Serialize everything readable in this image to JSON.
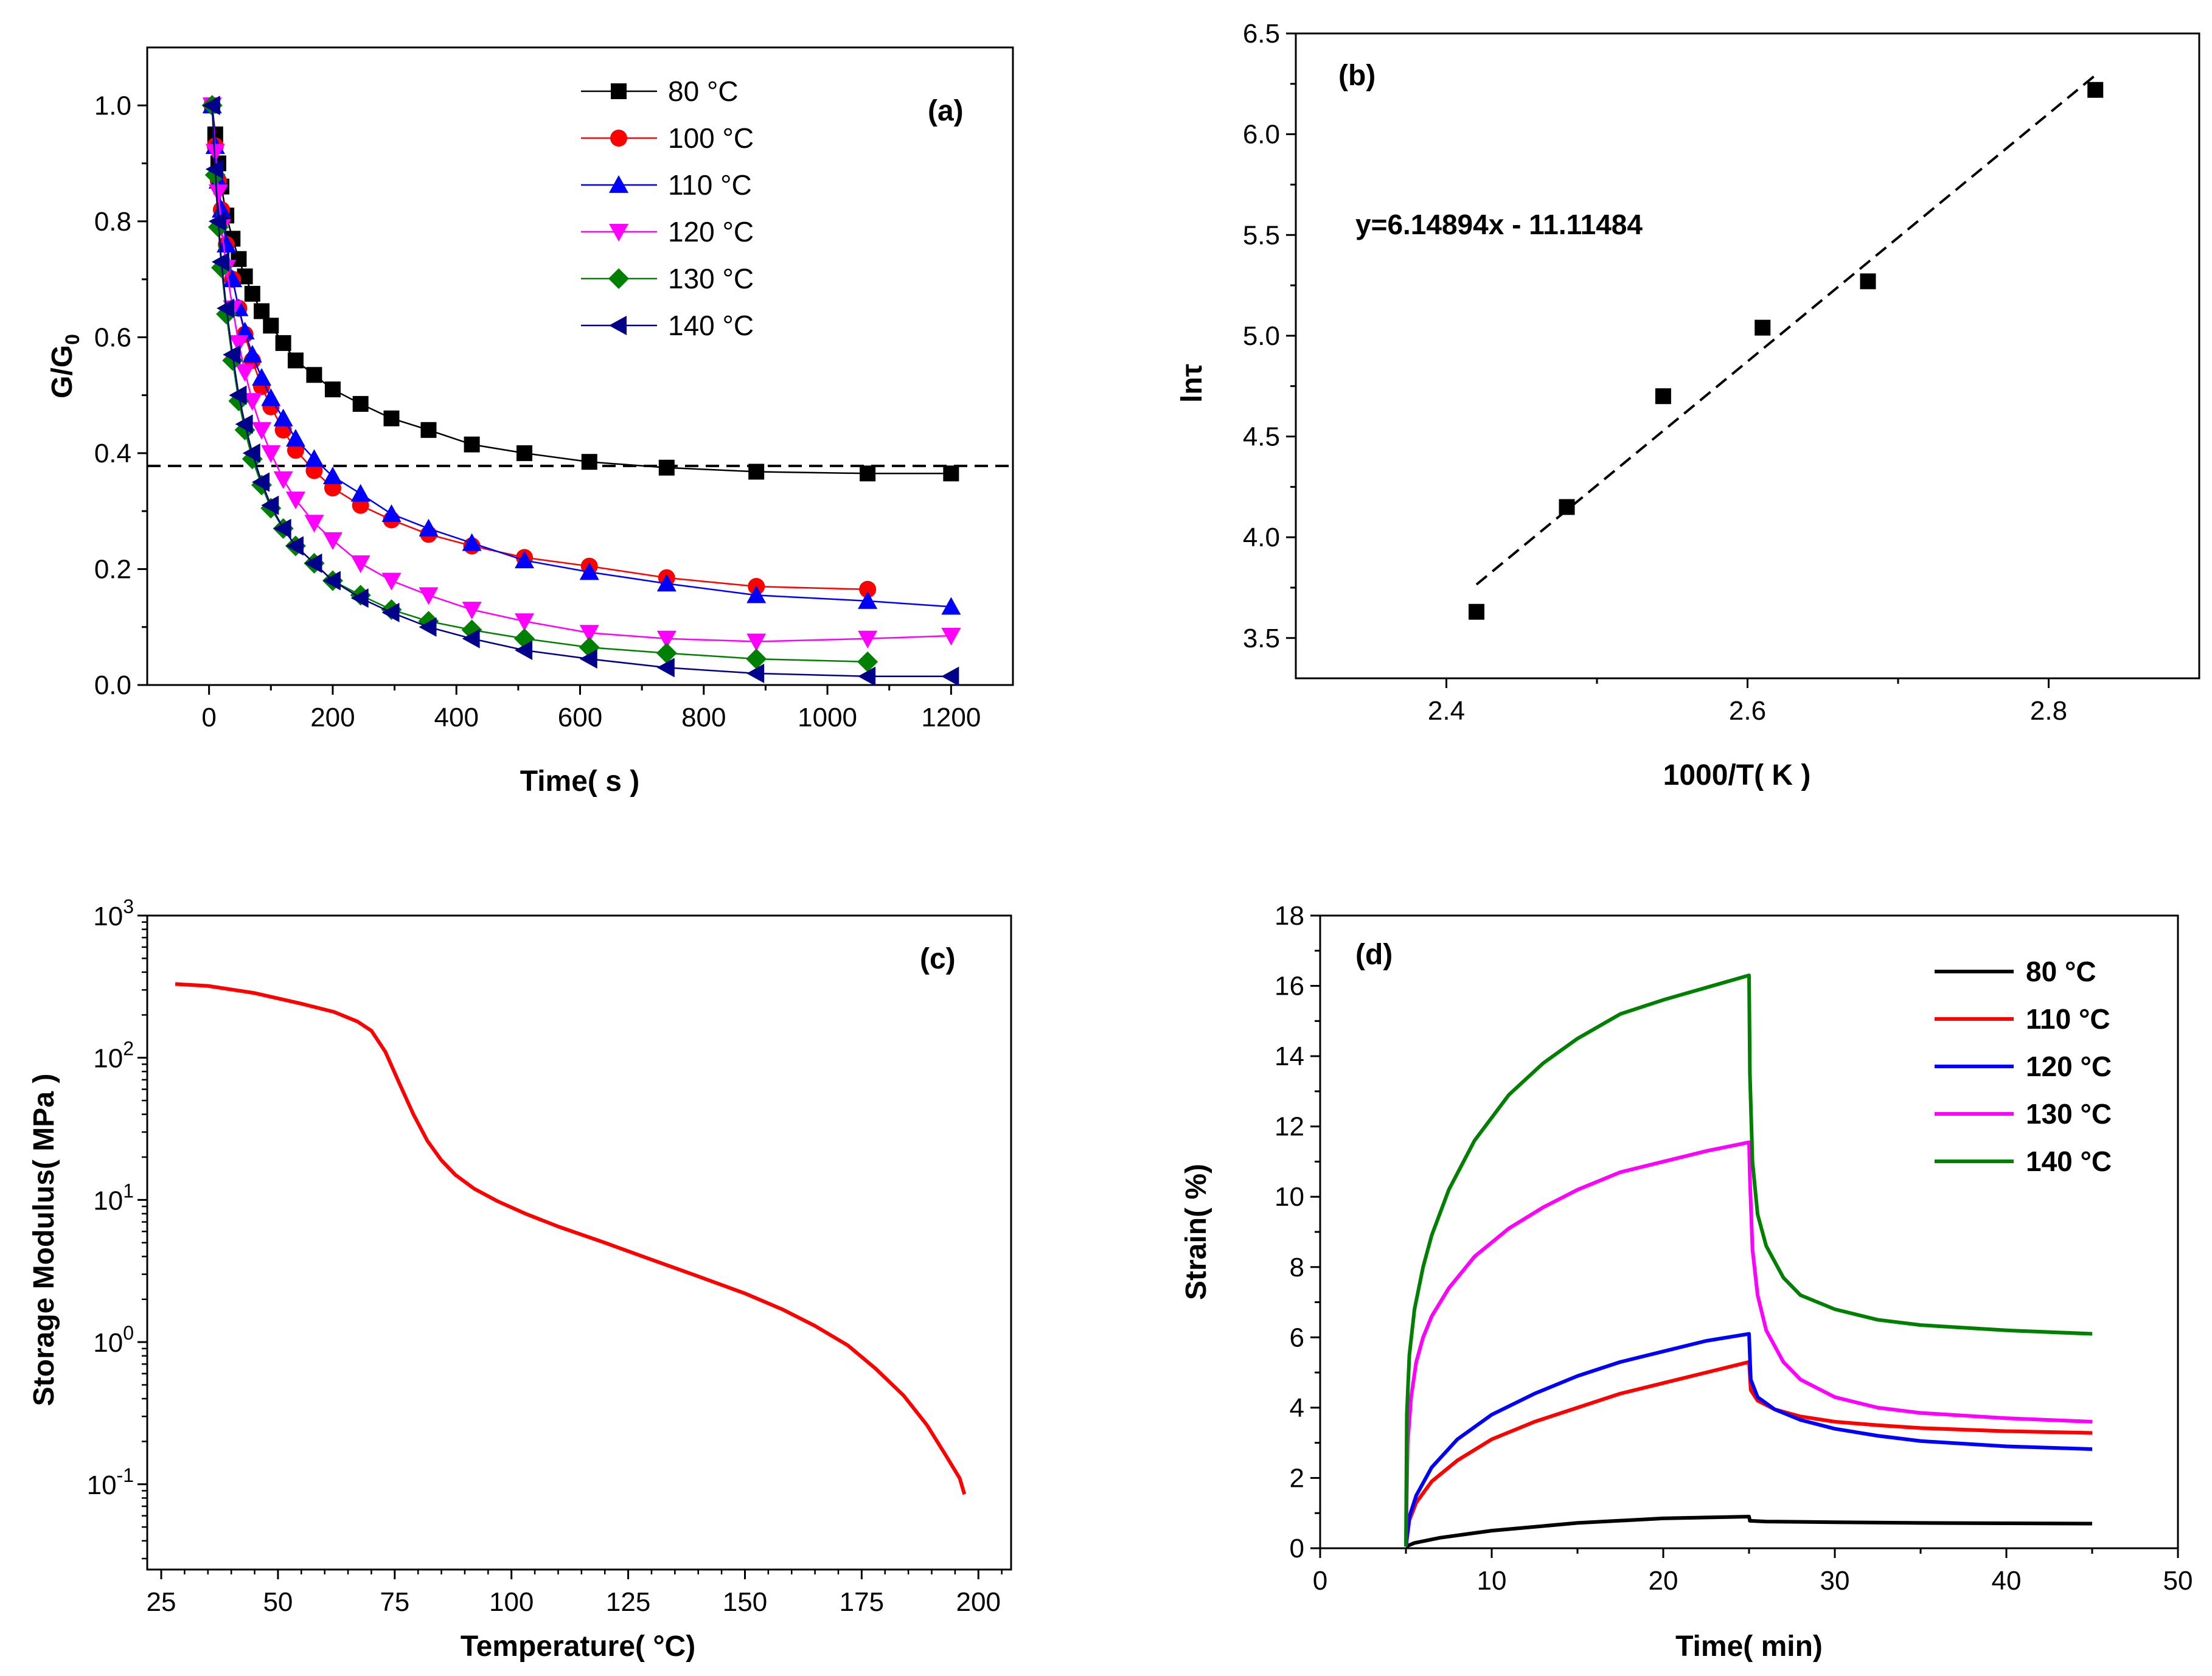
{
  "chart_data": [
    {
      "panel": "(a)",
      "type": "line",
      "xlabel": "Time( s )",
      "ylabel_main": "G/G",
      "ylabel_sub": "0",
      "xlim": [
        -100,
        1300
      ],
      "ylim": [
        0.0,
        1.1
      ],
      "xticks": [
        0,
        200,
        400,
        600,
        800,
        1000,
        1200
      ],
      "yticks": [
        0.0,
        0.2,
        0.4,
        0.6,
        0.8,
        1.0
      ],
      "xtick_labels": [
        "0",
        "200",
        "400",
        "600",
        "800",
        "1000",
        "1200"
      ],
      "ytick_labels": [
        "0.0",
        "0.2",
        "0.4",
        "0.6",
        "0.8",
        "1.0"
      ],
      "reference_line_y": 0.378,
      "legend_position": "top-center",
      "series": [
        {
          "name": "80 °C",
          "color": "#000000",
          "marker": "square",
          "x": [
            5,
            10,
            15,
            20,
            28,
            38,
            48,
            58,
            70,
            85,
            100,
            120,
            140,
            170,
            200,
            245,
            295,
            355,
            425,
            510,
            615,
            740,
            885,
            1065,
            1200
          ],
          "y": [
            1.0,
            0.95,
            0.9,
            0.86,
            0.81,
            0.77,
            0.735,
            0.705,
            0.675,
            0.645,
            0.62,
            0.59,
            0.56,
            0.535,
            0.51,
            0.485,
            0.46,
            0.44,
            0.415,
            0.4,
            0.385,
            0.375,
            0.368,
            0.365,
            0.365
          ]
        },
        {
          "name": "100 °C",
          "color": "#ff0000",
          "marker": "circle",
          "x": [
            5,
            10,
            15,
            20,
            28,
            38,
            48,
            58,
            70,
            85,
            100,
            120,
            140,
            170,
            200,
            245,
            295,
            355,
            425,
            510,
            615,
            740,
            885,
            1065
          ],
          "y": [
            1.0,
            0.93,
            0.87,
            0.82,
            0.76,
            0.7,
            0.65,
            0.605,
            0.56,
            0.515,
            0.48,
            0.44,
            0.405,
            0.37,
            0.34,
            0.31,
            0.285,
            0.26,
            0.24,
            0.22,
            0.205,
            0.185,
            0.17,
            0.165
          ]
        },
        {
          "name": "110 °C",
          "color": "#0000ff",
          "marker": "triangle-up",
          "x": [
            5,
            10,
            15,
            20,
            28,
            38,
            48,
            58,
            70,
            85,
            100,
            120,
            140,
            170,
            200,
            245,
            295,
            355,
            425,
            510,
            615,
            740,
            885,
            1065,
            1200
          ],
          "y": [
            1.0,
            0.93,
            0.87,
            0.82,
            0.76,
            0.7,
            0.65,
            0.61,
            0.57,
            0.53,
            0.495,
            0.46,
            0.425,
            0.39,
            0.36,
            0.33,
            0.295,
            0.27,
            0.245,
            0.215,
            0.195,
            0.175,
            0.155,
            0.145,
            0.135
          ]
        },
        {
          "name": "120 °C",
          "color": "#ff00ff",
          "marker": "triangle-down",
          "x": [
            5,
            10,
            15,
            20,
            28,
            38,
            48,
            58,
            70,
            85,
            100,
            120,
            140,
            170,
            200,
            245,
            295,
            355,
            425,
            510,
            615,
            740,
            885,
            1065,
            1200
          ],
          "y": [
            1.0,
            0.92,
            0.85,
            0.79,
            0.72,
            0.65,
            0.59,
            0.54,
            0.49,
            0.44,
            0.4,
            0.355,
            0.32,
            0.28,
            0.25,
            0.21,
            0.18,
            0.155,
            0.13,
            0.11,
            0.09,
            0.08,
            0.075,
            0.08,
            0.085
          ]
        },
        {
          "name": "130 °C",
          "color": "#008000",
          "marker": "diamond",
          "x": [
            5,
            10,
            15,
            20,
            28,
            38,
            48,
            58,
            70,
            85,
            100,
            120,
            140,
            170,
            200,
            245,
            295,
            355,
            425,
            510,
            615,
            740,
            885,
            1065
          ],
          "y": [
            1.0,
            0.88,
            0.79,
            0.72,
            0.64,
            0.56,
            0.49,
            0.44,
            0.39,
            0.345,
            0.305,
            0.27,
            0.24,
            0.21,
            0.18,
            0.155,
            0.13,
            0.11,
            0.095,
            0.08,
            0.065,
            0.055,
            0.045,
            0.04
          ]
        },
        {
          "name": "140 °C",
          "color": "#00008b",
          "marker": "triangle-left",
          "x": [
            5,
            10,
            15,
            20,
            28,
            38,
            48,
            58,
            70,
            85,
            100,
            120,
            140,
            170,
            200,
            245,
            295,
            355,
            425,
            510,
            615,
            740,
            885,
            1065,
            1200
          ],
          "y": [
            1.0,
            0.89,
            0.8,
            0.73,
            0.65,
            0.57,
            0.5,
            0.45,
            0.4,
            0.35,
            0.31,
            0.27,
            0.24,
            0.21,
            0.18,
            0.15,
            0.125,
            0.1,
            0.08,
            0.06,
            0.045,
            0.03,
            0.02,
            0.015,
            0.015
          ]
        }
      ]
    },
    {
      "panel": "(b)",
      "type": "scatter",
      "xlabel": "1000/T( K )",
      "ylabel": "lnτ",
      "xlim": [
        2.3,
        2.9
      ],
      "ylim": [
        3.3,
        6.5
      ],
      "xticks": [
        2.4,
        2.6,
        2.8
      ],
      "yticks": [
        3.5,
        4.0,
        4.5,
        5.0,
        5.5,
        6.0,
        6.5
      ],
      "xtick_labels": [
        "2.4",
        "2.6",
        "2.8"
      ],
      "ytick_labels": [
        "3.5",
        "4.0",
        "4.5",
        "5.0",
        "5.5",
        "6.0",
        "6.5"
      ],
      "equation": "y=6.14894x - 11.11484",
      "fit": {
        "slope": 6.14894,
        "intercept": -11.11484,
        "x_range": [
          2.42,
          2.83
        ]
      },
      "points": {
        "x": [
          2.42,
          2.48,
          2.544,
          2.61,
          2.68,
          2.831
        ],
        "y": [
          3.63,
          4.15,
          4.7,
          5.04,
          5.27,
          6.22
        ]
      }
    },
    {
      "panel": "(c)",
      "type": "line",
      "xlabel": "Temperature( °C)",
      "ylabel": "Storage Modulus( MPa )",
      "yscale": "log",
      "xlim": [
        22,
        207
      ],
      "ylim_log10": [
        -1.6,
        3.0
      ],
      "xticks": [
        25,
        50,
        75,
        100,
        125,
        150,
        175,
        200
      ],
      "xtick_labels": [
        "25",
        "50",
        "75",
        "100",
        "125",
        "150",
        "175",
        "200"
      ],
      "yticks_log10": [
        -1,
        0,
        1,
        2,
        3
      ],
      "ytick_base": "10",
      "ytick_exponents": [
        "-1",
        "0",
        "1",
        "2",
        "3"
      ],
      "series": [
        {
          "name": "Storage Modulus",
          "color": "#ff0000",
          "x": [
            28,
            35,
            45,
            55,
            62,
            67,
            70,
            73,
            76,
            79,
            82,
            85,
            88,
            92,
            97,
            103,
            110,
            120,
            130,
            140,
            150,
            158,
            165,
            172,
            178,
            184,
            189,
            193,
            196,
            197
          ],
          "y": [
            330,
            320,
            285,
            240,
            210,
            180,
            155,
            110,
            66,
            40,
            26,
            19,
            15,
            12,
            9.8,
            8.0,
            6.5,
            5.0,
            3.8,
            2.9,
            2.2,
            1.7,
            1.3,
            0.95,
            0.65,
            0.42,
            0.26,
            0.16,
            0.11,
            0.085
          ]
        }
      ]
    },
    {
      "panel": "(d)",
      "type": "line",
      "xlabel": "Time( min)",
      "ylabel": "Strain( %)",
      "xlim": [
        0,
        50
      ],
      "ylim": [
        0,
        18
      ],
      "xticks": [
        0,
        10,
        20,
        30,
        40,
        50
      ],
      "yticks": [
        0,
        2,
        4,
        6,
        8,
        10,
        12,
        14,
        16,
        18
      ],
      "xtick_labels": [
        "0",
        "10",
        "20",
        "30",
        "40",
        "50"
      ],
      "ytick_labels": [
        "0",
        "2",
        "4",
        "6",
        "8",
        "10",
        "12",
        "14",
        "16",
        "18"
      ],
      "legend_position": "top-right",
      "series": [
        {
          "name": "80 °C",
          "color": "#000000",
          "x": [
            5,
            5.5,
            7,
            10,
            15,
            20,
            25,
            25.05,
            26,
            28,
            30,
            35,
            40,
            45
          ],
          "y": [
            0.05,
            0.15,
            0.3,
            0.5,
            0.72,
            0.85,
            0.9,
            0.78,
            0.76,
            0.75,
            0.74,
            0.72,
            0.71,
            0.7
          ]
        },
        {
          "name": "110 °C",
          "color": "#ff0000",
          "x": [
            5,
            5.2,
            5.6,
            6.5,
            8,
            10,
            12.5,
            15,
            17.5,
            20,
            22.5,
            25,
            25.1,
            25.5,
            26.5,
            28,
            30,
            32.5,
            35,
            40,
            45
          ],
          "y": [
            0.05,
            0.8,
            1.3,
            1.9,
            2.5,
            3.1,
            3.6,
            4.0,
            4.4,
            4.7,
            5.0,
            5.3,
            4.5,
            4.2,
            3.95,
            3.75,
            3.6,
            3.5,
            3.42,
            3.33,
            3.28
          ]
        },
        {
          "name": "120 °C",
          "color": "#0000ff",
          "x": [
            5,
            5.2,
            5.6,
            6.5,
            8,
            10,
            12.5,
            15,
            17.5,
            20,
            22.5,
            25,
            25.1,
            25.5,
            26.5,
            28,
            30,
            32.5,
            35,
            40,
            45
          ],
          "y": [
            0.05,
            0.9,
            1.5,
            2.3,
            3.1,
            3.8,
            4.4,
            4.9,
            5.3,
            5.6,
            5.9,
            6.1,
            4.8,
            4.3,
            3.95,
            3.65,
            3.4,
            3.2,
            3.05,
            2.9,
            2.82
          ]
        },
        {
          "name": "130 °C",
          "color": "#ff00ff",
          "x": [
            5,
            5.1,
            5.3,
            5.6,
            6,
            6.5,
            7.5,
            9,
            11,
            13,
            15,
            17.5,
            20,
            22.5,
            25,
            25.05,
            25.2,
            25.5,
            26,
            27,
            28,
            30,
            32.5,
            35,
            40,
            45
          ],
          "y": [
            0.05,
            3.0,
            4.3,
            5.3,
            6.0,
            6.6,
            7.4,
            8.3,
            9.1,
            9.7,
            10.2,
            10.7,
            11.0,
            11.3,
            11.55,
            10.5,
            8.5,
            7.2,
            6.2,
            5.3,
            4.8,
            4.3,
            4.0,
            3.85,
            3.7,
            3.6
          ]
        },
        {
          "name": "140 °C",
          "color": "#008000",
          "x": [
            5,
            5.05,
            5.2,
            5.5,
            6,
            6.5,
            7.5,
            9,
            11,
            13,
            15,
            17.5,
            20,
            22.5,
            25,
            25.05,
            25.2,
            25.5,
            26,
            27,
            28,
            30,
            32.5,
            35,
            40,
            45
          ],
          "y": [
            0.05,
            3.8,
            5.5,
            6.8,
            8.0,
            8.9,
            10.2,
            11.6,
            12.9,
            13.8,
            14.5,
            15.2,
            15.6,
            15.95,
            16.3,
            13.5,
            11.0,
            9.5,
            8.6,
            7.7,
            7.2,
            6.8,
            6.5,
            6.35,
            6.2,
            6.1
          ]
        }
      ]
    }
  ]
}
